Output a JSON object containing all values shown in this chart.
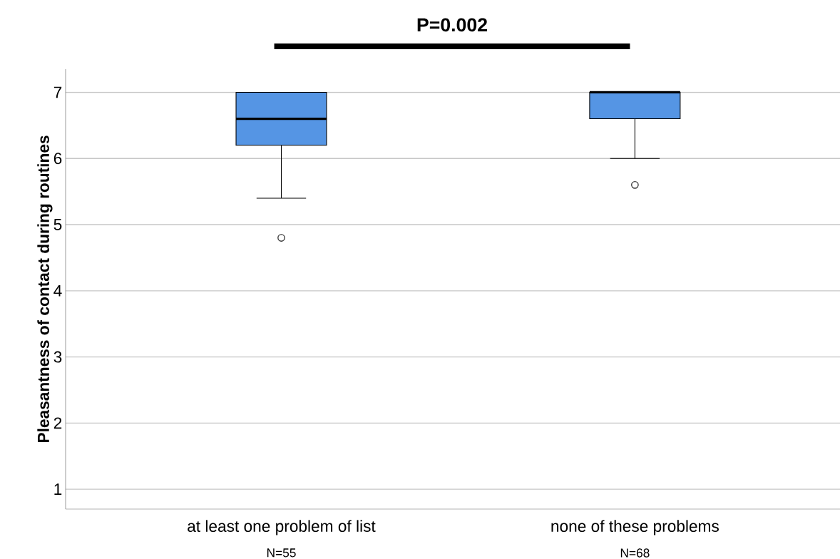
{
  "chart_data": {
    "type": "box",
    "ylabel": "Pleasantness of contact during routines",
    "categories": [
      "at least one problem of list",
      "none of these problems"
    ],
    "boxes": [
      {
        "low": 5.4,
        "q1": 6.2,
        "median": 6.6,
        "q3": 7,
        "high": 7,
        "outliers": [
          4.8
        ]
      },
      {
        "low": 6,
        "q1": 6.6,
        "median": 7,
        "q3": 7,
        "high": 7,
        "outliers": [
          5.6
        ]
      }
    ],
    "color": "#5595e4",
    "ylim": [
      0.7,
      7.35
    ],
    "yticks": [
      1,
      2,
      3,
      4,
      5,
      6,
      7
    ],
    "grid": "y",
    "annotations": [
      "P=0.002",
      "N=55",
      "N=68"
    ]
  }
}
